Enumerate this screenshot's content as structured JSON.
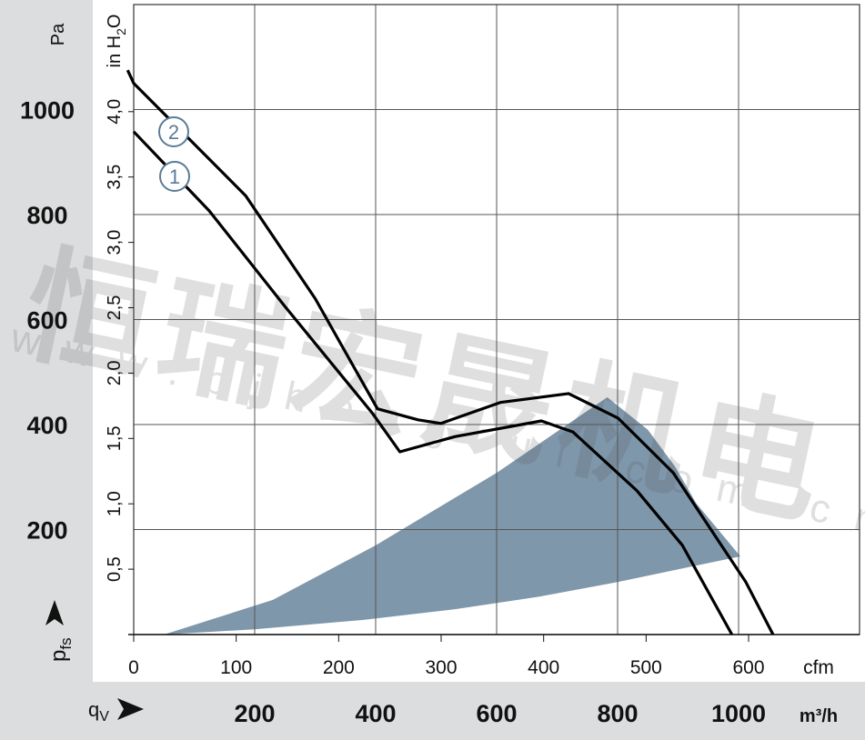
{
  "chart_data": {
    "type": "line",
    "title": "",
    "ylabel": "p_fs",
    "ylabel_main": "p",
    "ylabel_sub": "fs",
    "yunit": "Pa",
    "y2unit": "in H2O",
    "y2unit_main": "in H",
    "y2unit_sub": "2",
    "y2unit_tail": "O",
    "xlabel": "q_V",
    "xlabel_main": "q",
    "xlabel_sub": "V",
    "xunit": "m³/h",
    "x2unit": "cfm",
    "xlim": [
      0,
      1200
    ],
    "ylim": [
      0,
      1200
    ],
    "x_ticks": [
      "200",
      "400",
      "600",
      "800",
      "1000"
    ],
    "x_tick_values": [
      200,
      400,
      600,
      800,
      1000
    ],
    "y_ticks": [
      "200",
      "400",
      "600",
      "800",
      "1000"
    ],
    "y_tick_values": [
      200,
      400,
      600,
      800,
      1000
    ],
    "cfm_ticks": [
      "0",
      "100",
      "200",
      "300",
      "400",
      "500",
      "600"
    ],
    "cfm_tick_values": [
      0,
      100,
      200,
      300,
      400,
      500,
      600
    ],
    "inh2o_ticks": [
      "0,5",
      "1,0",
      "1,5",
      "2,0",
      "2,5",
      "3,0",
      "3,5",
      "4,0"
    ],
    "inh2o_tick_values": [
      0.5,
      1.0,
      1.5,
      2.0,
      2.5,
      3.0,
      3.5,
      4.0
    ],
    "grid": true,
    "series": [
      {
        "name": "1",
        "x": [
          0,
          125,
          250,
          395,
          440,
          531,
          674,
          726,
          832,
          907,
          989
        ],
        "y": [
          958,
          807,
          625,
          421,
          348,
          377,
          407,
          386,
          274,
          170,
          0
        ]
      },
      {
        "name": "2",
        "x": [
          -10,
          0,
          185,
          300,
          403,
          470,
          508,
          606,
          719,
          801,
          892,
          952,
          1012,
          1057
        ],
        "y": [
          1075,
          1050,
          836,
          640,
          430,
          409,
          402,
          442,
          459,
          412,
          308,
          204,
          100,
          0
        ]
      }
    ],
    "operating_range": {
      "lower": {
        "x": [
          50,
          200,
          380,
          530,
          670,
          800,
          1003
        ],
        "y": [
          0,
          10,
          28,
          48,
          72,
          100,
          149
        ]
      },
      "upper": {
        "x": [
          50,
          230,
          400,
          600,
          783
        ],
        "y": [
          0,
          66,
          170,
          308,
          452
        ]
      },
      "right": {
        "x": [
          783,
          850,
          895,
          930,
          1003
        ],
        "y": [
          452,
          390,
          320,
          250,
          149
        ]
      },
      "color": "#7f97ab"
    },
    "watermark": "恒瑞宏晟机电 www.bjhengrui.com.cn"
  }
}
